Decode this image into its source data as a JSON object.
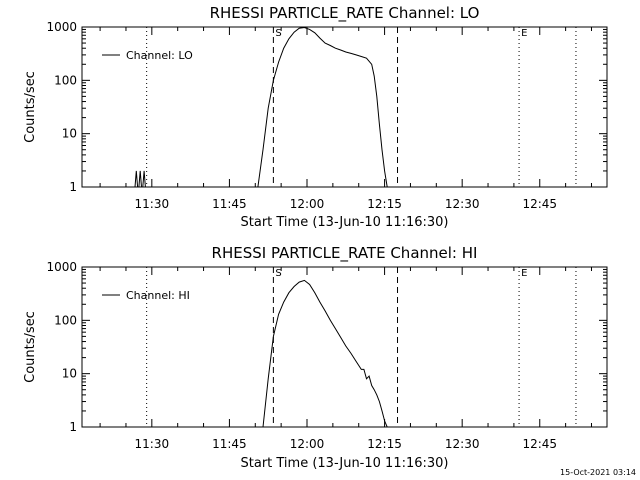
{
  "chart_data": [
    {
      "type": "line",
      "title": "RHESSI PARTICLE_RATE Channel: LO",
      "xlabel": "Start Time (13-Jun-10 11:16:30)",
      "ylabel": "Counts/sec",
      "yscale": "log",
      "ylim": [
        1,
        1000
      ],
      "xlim": [
        "11:16:30",
        "12:58:00"
      ],
      "x_tick_labels": [
        "11:30",
        "11:45",
        "12:00",
        "12:15",
        "12:30",
        "12:45"
      ],
      "x_tick_minutes": [
        30,
        45,
        60,
        75,
        90,
        105
      ],
      "y_tick_labels": [
        "1",
        "10",
        "100",
        "1000"
      ],
      "y_tick_values": [
        1,
        10,
        100,
        1000
      ],
      "legend": {
        "entries": [
          "Channel: LO"
        ],
        "placement": "top-left"
      },
      "flag_labels": [
        "S",
        "E"
      ],
      "vlines": [
        {
          "t": "11:29:00",
          "style": "dotted"
        },
        {
          "t": "11:53:30",
          "style": "dashed",
          "label": "S"
        },
        {
          "t": "12:17:30",
          "style": "dashed"
        },
        {
          "t": "12:41:00",
          "style": "dotted",
          "label": "E"
        },
        {
          "t": "12:52:00",
          "style": "dotted"
        }
      ],
      "series": [
        {
          "name": "Channel: LO",
          "x": [
            "11:16:30",
            "11:26:30",
            "11:26:45",
            "11:27:00",
            "11:27:15",
            "11:27:30",
            "11:27:45",
            "11:28:00",
            "11:28:15",
            "11:28:30",
            "11:28:45",
            "11:29:00",
            "11:30:00",
            "11:45:00",
            "11:50:30",
            "11:51:30",
            "11:52:30",
            "11:53:30",
            "11:54:30",
            "11:55:30",
            "11:56:30",
            "11:57:30",
            "11:58:30",
            "11:59:30",
            "12:00:30",
            "12:01:30",
            "12:02:30",
            "12:03:30",
            "12:04:30",
            "12:05:30",
            "12:06:30",
            "12:07:30",
            "12:08:30",
            "12:09:30",
            "12:10:30",
            "12:11:30",
            "12:12:30",
            "12:13:00",
            "12:13:30",
            "12:14:00",
            "12:14:30",
            "12:15:00",
            "12:15:30",
            "12:16:00",
            "12:30:00",
            "12:58:00"
          ],
          "y": [
            1,
            1,
            1,
            2,
            1,
            1,
            2,
            1,
            1,
            2,
            1,
            1,
            1,
            1,
            1,
            5,
            30,
            100,
            220,
            400,
            600,
            800,
            950,
            980,
            900,
            780,
            620,
            500,
            450,
            400,
            370,
            340,
            320,
            300,
            280,
            260,
            200,
            120,
            50,
            15,
            5,
            2,
            1,
            1,
            1,
            1
          ]
        }
      ]
    },
    {
      "type": "line",
      "title": "RHESSI PARTICLE_RATE Channel: HI",
      "xlabel": "Start Time (13-Jun-10 11:16:30)",
      "ylabel": "Counts/sec",
      "yscale": "log",
      "ylim": [
        1,
        1000
      ],
      "xlim": [
        "11:16:30",
        "12:58:00"
      ],
      "x_tick_labels": [
        "11:30",
        "11:45",
        "12:00",
        "12:15",
        "12:30",
        "12:45"
      ],
      "x_tick_minutes": [
        30,
        45,
        60,
        75,
        90,
        105
      ],
      "y_tick_labels": [
        "1",
        "10",
        "100",
        "1000"
      ],
      "y_tick_values": [
        1,
        10,
        100,
        1000
      ],
      "legend": {
        "entries": [
          "Channel: HI"
        ],
        "placement": "top-left"
      },
      "flag_labels": [
        "S",
        "E"
      ],
      "vlines": [
        {
          "t": "11:29:00",
          "style": "dotted"
        },
        {
          "t": "11:53:30",
          "style": "dashed",
          "label": "S"
        },
        {
          "t": "12:17:30",
          "style": "dashed"
        },
        {
          "t": "12:41:00",
          "style": "dotted",
          "label": "E"
        },
        {
          "t": "12:52:00",
          "style": "dotted"
        }
      ],
      "series": [
        {
          "name": "Channel: HI",
          "x": [
            "11:16:30",
            "11:45:00",
            "11:51:30",
            "11:52:30",
            "11:53:30",
            "11:54:30",
            "11:55:30",
            "11:56:30",
            "11:57:30",
            "11:58:30",
            "11:59:30",
            "12:00:30",
            "12:01:30",
            "12:02:30",
            "12:03:30",
            "12:04:30",
            "12:05:30",
            "12:06:30",
            "12:07:30",
            "12:08:30",
            "12:09:30",
            "12:10:30",
            "12:11:00",
            "12:11:30",
            "12:12:00",
            "12:12:30",
            "12:13:00",
            "12:13:30",
            "12:14:00",
            "12:14:30",
            "12:15:00",
            "12:15:30",
            "12:30:00",
            "12:58:00"
          ],
          "y": [
            1,
            1,
            1,
            8,
            50,
            130,
            220,
            330,
            430,
            520,
            560,
            470,
            330,
            220,
            150,
            100,
            70,
            48,
            33,
            24,
            17,
            12,
            12,
            8,
            9,
            6,
            5,
            4,
            3,
            2,
            1.3,
            1,
            1,
            1
          ]
        }
      ]
    }
  ],
  "footer": {
    "timestamp": "15-Oct-2021 03:14"
  }
}
